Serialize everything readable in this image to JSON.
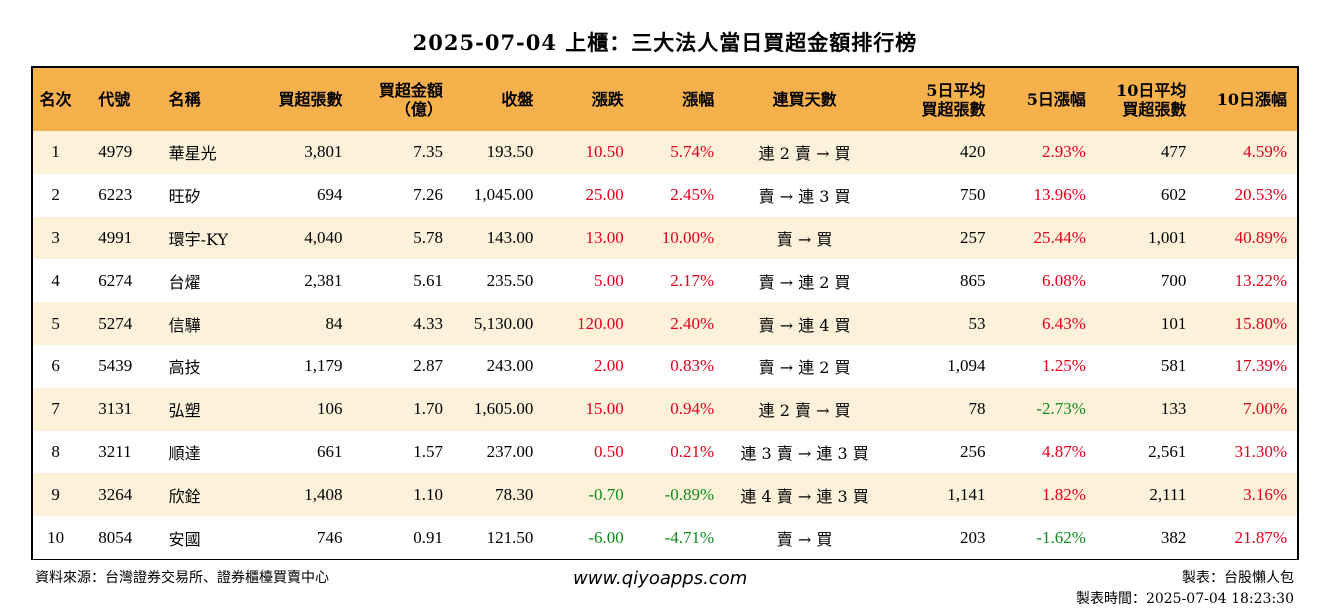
{
  "title": "2025-07-04 上櫃：三大法人當日買超金額排行榜",
  "headers": {
    "rank": "名次",
    "code": "代號",
    "name": "名稱",
    "buy_shares": "買超張數",
    "buy_amount_1": "買超金額",
    "buy_amount_2": "（億）",
    "close": "收盤",
    "change": "漲跌",
    "change_pct": "漲幅",
    "streak": "連買天數",
    "avg5_1": "5日平均",
    "avg5_2": "買超張數",
    "pct5": "5日漲幅",
    "avg10_1": "10日平均",
    "avg10_2": "買超張數",
    "pct10": "10日漲幅"
  },
  "rows": [
    {
      "rank": "1",
      "code": "4979",
      "name": "華星光",
      "buy_shares": "3,801",
      "buy_amount": "7.35",
      "close": "193.50",
      "change": "10.50",
      "change_pct": "5.74%",
      "streak": "連 2 賣 → 買",
      "avg5": "420",
      "pct5": "2.93%",
      "avg10": "477",
      "pct10": "4.59%"
    },
    {
      "rank": "2",
      "code": "6223",
      "name": "旺矽",
      "buy_shares": "694",
      "buy_amount": "7.26",
      "close": "1,045.00",
      "change": "25.00",
      "change_pct": "2.45%",
      "streak": "賣 → 連 3 買",
      "avg5": "750",
      "pct5": "13.96%",
      "avg10": "602",
      "pct10": "20.53%"
    },
    {
      "rank": "3",
      "code": "4991",
      "name": "環宇-KY",
      "buy_shares": "4,040",
      "buy_amount": "5.78",
      "close": "143.00",
      "change": "13.00",
      "change_pct": "10.00%",
      "streak": "賣 → 買",
      "avg5": "257",
      "pct5": "25.44%",
      "avg10": "1,001",
      "pct10": "40.89%"
    },
    {
      "rank": "4",
      "code": "6274",
      "name": "台燿",
      "buy_shares": "2,381",
      "buy_amount": "5.61",
      "close": "235.50",
      "change": "5.00",
      "change_pct": "2.17%",
      "streak": "賣 → 連 2 買",
      "avg5": "865",
      "pct5": "6.08%",
      "avg10": "700",
      "pct10": "13.22%"
    },
    {
      "rank": "5",
      "code": "5274",
      "name": "信驊",
      "buy_shares": "84",
      "buy_amount": "4.33",
      "close": "5,130.00",
      "change": "120.00",
      "change_pct": "2.40%",
      "streak": "賣 → 連 4 買",
      "avg5": "53",
      "pct5": "6.43%",
      "avg10": "101",
      "pct10": "15.80%"
    },
    {
      "rank": "6",
      "code": "5439",
      "name": "高技",
      "buy_shares": "1,179",
      "buy_amount": "2.87",
      "close": "243.00",
      "change": "2.00",
      "change_pct": "0.83%",
      "streak": "賣 → 連 2 買",
      "avg5": "1,094",
      "pct5": "1.25%",
      "avg10": "581",
      "pct10": "17.39%"
    },
    {
      "rank": "7",
      "code": "3131",
      "name": "弘塑",
      "buy_shares": "106",
      "buy_amount": "1.70",
      "close": "1,605.00",
      "change": "15.00",
      "change_pct": "0.94%",
      "streak": "連 2 賣 → 買",
      "avg5": "78",
      "pct5": "-2.73%",
      "avg10": "133",
      "pct10": "7.00%"
    },
    {
      "rank": "8",
      "code": "3211",
      "name": "順達",
      "buy_shares": "661",
      "buy_amount": "1.57",
      "close": "237.00",
      "change": "0.50",
      "change_pct": "0.21%",
      "streak": "連 3 賣 → 連 3 買",
      "avg5": "256",
      "pct5": "4.87%",
      "avg10": "2,561",
      "pct10": "31.30%"
    },
    {
      "rank": "9",
      "code": "3264",
      "name": "欣銓",
      "buy_shares": "1,408",
      "buy_amount": "1.10",
      "close": "78.30",
      "change": "-0.70",
      "change_pct": "-0.89%",
      "streak": "連 4 賣 → 連 3 買",
      "avg5": "1,141",
      "pct5": "1.82%",
      "avg10": "2,111",
      "pct10": "3.16%"
    },
    {
      "rank": "10",
      "code": "8054",
      "name": "安國",
      "buy_shares": "746",
      "buy_amount": "0.91",
      "close": "121.50",
      "change": "-6.00",
      "change_pct": "-4.71%",
      "streak": "賣 → 買",
      "avg5": "203",
      "pct5": "-1.62%",
      "avg10": "382",
      "pct10": "21.87%"
    }
  ],
  "colors": {
    "header_bg": "#f7b14c",
    "row_alt_bg": "#fdf1da",
    "up": "#e0001b",
    "down": "#138a1e"
  },
  "footer": {
    "source": "資料來源：台灣證券交易所、證券櫃檯買賣中心",
    "website": "www.qiyoapps.com",
    "author": "製表：台股懶人包",
    "made_time": "製表時間：2025-07-04 18:23:30"
  }
}
